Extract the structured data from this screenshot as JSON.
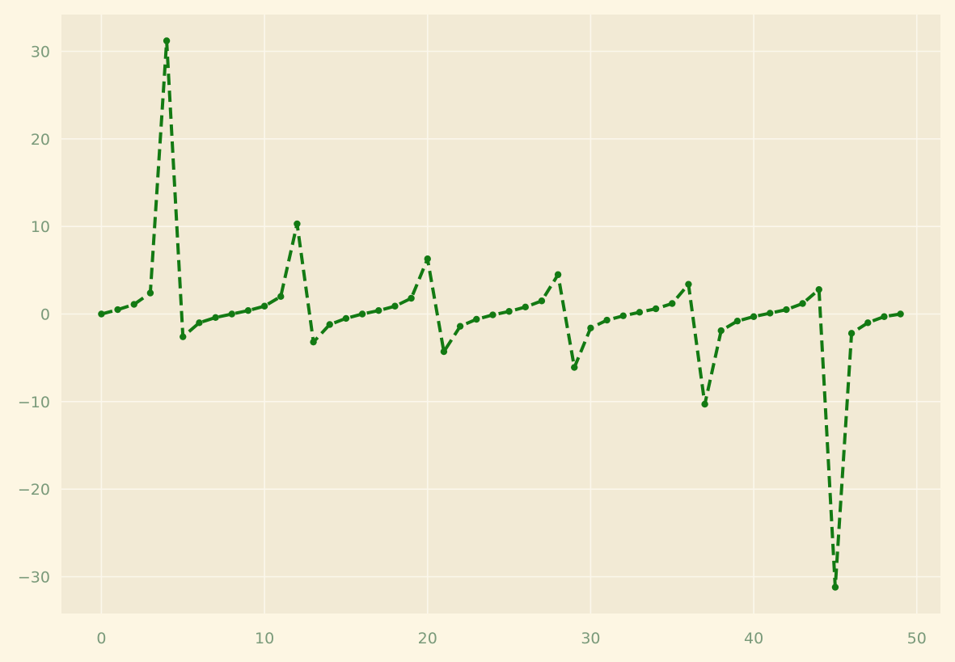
{
  "chart_data": {
    "type": "line",
    "title": "",
    "xlabel": "",
    "ylabel": "",
    "xlim": [
      -2.45,
      51.45
    ],
    "ylim": [
      -34.2,
      34.2
    ],
    "x_ticks": [
      0,
      10,
      20,
      30,
      40,
      50
    ],
    "x_tick_labels": [
      "0",
      "10",
      "20",
      "30",
      "40",
      "50"
    ],
    "y_ticks": [
      -30,
      -20,
      -10,
      0,
      10,
      20,
      30
    ],
    "y_tick_labels": [
      "−30",
      "−20",
      "−10",
      "0",
      "10",
      "20",
      "30"
    ],
    "grid": true,
    "legend": "none",
    "colors": {
      "page_background": "#fdf6e3",
      "plot_background": "#f2ead5",
      "grid": "#fbf7ec",
      "tick_label": "#7a9a7a",
      "series": "#137a13"
    },
    "series": [
      {
        "line_style": "dashed",
        "marker": "circle",
        "x": [
          0,
          1,
          2,
          3,
          4,
          5,
          6,
          7,
          8,
          9,
          10,
          11,
          12,
          13,
          14,
          15,
          16,
          17,
          18,
          19,
          20,
          21,
          22,
          23,
          24,
          25,
          26,
          27,
          28,
          29,
          30,
          31,
          32,
          33,
          34,
          35,
          36,
          37,
          38,
          39,
          40,
          41,
          42,
          43,
          44,
          45,
          46,
          47,
          48,
          49
        ],
        "values": [
          0,
          0.5,
          1.1,
          2.4,
          31.2,
          -2.6,
          -1.0,
          -0.4,
          0.0,
          0.4,
          0.9,
          2.0,
          10.3,
          -3.2,
          -1.2,
          -0.5,
          0.0,
          0.4,
          0.9,
          1.8,
          6.3,
          -4.3,
          -1.4,
          -0.6,
          -0.1,
          0.3,
          0.8,
          1.5,
          4.5,
          -6.1,
          -1.6,
          -0.7,
          -0.2,
          0.2,
          0.6,
          1.2,
          3.4,
          -10.3,
          -1.9,
          -0.8,
          -0.3,
          0.1,
          0.5,
          1.2,
          2.8,
          -31.2,
          -2.2,
          -1.0,
          -0.3,
          0.0
        ]
      }
    ]
  }
}
